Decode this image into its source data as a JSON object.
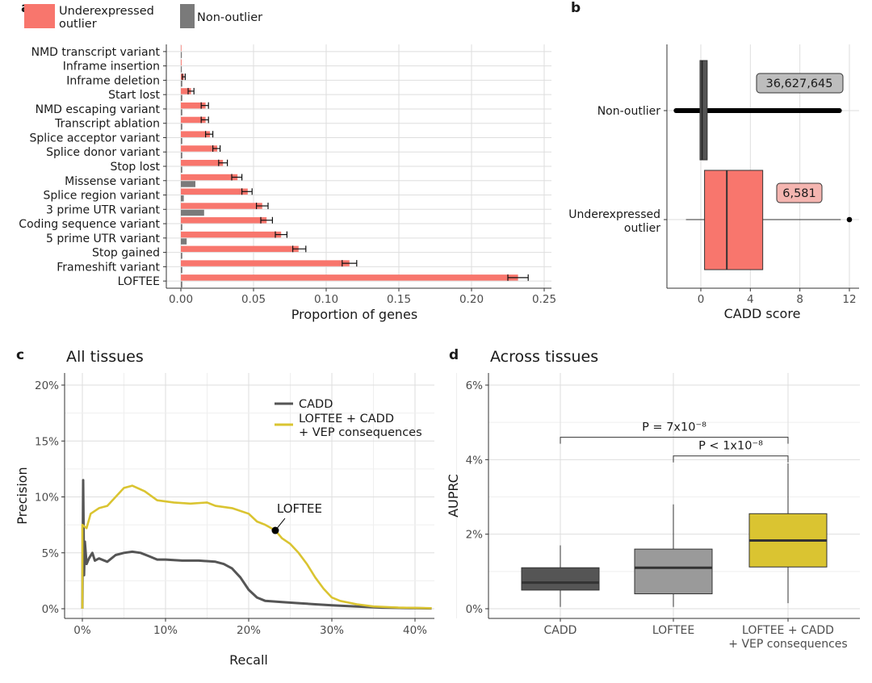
{
  "colors": {
    "outlier": "#F8766D",
    "non_outlier": "#7a7a7a",
    "cadd": "#555555",
    "combined": "#DAC431",
    "loftee_box": "#9a9a9a",
    "cadd_box": "#555555"
  },
  "chart_data": [
    {
      "panel": "a",
      "type": "bar",
      "legend": [
        "Underexpressed outlier",
        "Non-outlier"
      ],
      "legend_position": "top",
      "xlabel": "Proportion of genes",
      "xlim": [
        0,
        0.25
      ],
      "xticks": [
        "0.00",
        "0.05",
        "0.10",
        "0.15",
        "0.20",
        "0.25"
      ],
      "tick_values": [
        0,
        0.05,
        0.1,
        0.15,
        0.2,
        0.25
      ],
      "categories": [
        "LOFTEE",
        "Frameshift variant",
        "Stop gained",
        "5 prime UTR variant",
        "Coding sequence variant",
        "3 prime UTR variant",
        "Splice region variant",
        "Missense variant",
        "Stop lost",
        "Splice donor variant",
        "Splice acceptor variant",
        "Transcript ablation",
        "NMD escaping variant",
        "Start lost",
        "Inframe deletion",
        "Inframe insertion",
        "NMD transcript variant"
      ],
      "series": [
        {
          "name": "Underexpressed outlier",
          "values": [
            0.232,
            0.116,
            0.081,
            0.069,
            0.059,
            0.056,
            0.046,
            0.039,
            0.029,
            0.025,
            0.02,
            0.017,
            0.017,
            0.007,
            0.002,
            0.0005,
            0.0004
          ],
          "err_low": [
            0.225,
            0.111,
            0.077,
            0.065,
            0.055,
            0.052,
            0.042,
            0.035,
            0.026,
            0.022,
            0.017,
            0.014,
            0.014,
            0.005,
            0.001,
            0.0,
            0.0
          ],
          "err_high": [
            0.239,
            0.121,
            0.086,
            0.073,
            0.063,
            0.06,
            0.049,
            0.042,
            0.032,
            0.027,
            0.022,
            0.019,
            0.019,
            0.009,
            0.003,
            0.0,
            0.0
          ]
        },
        {
          "name": "Non-outlier",
          "values": [
            0.001,
            0.001,
            0.001,
            0.004,
            0.001,
            0.016,
            0.002,
            0.01,
            0.001,
            0.001,
            0.001,
            0.001,
            0.001,
            0.001,
            0.001,
            0.0005,
            0.0005
          ]
        }
      ],
      "grid": true
    },
    {
      "panel": "b",
      "type": "boxplot",
      "categories": [
        "Non-outlier",
        "Underexpressed\noutlier"
      ],
      "category_lines": [
        [
          "Non-outlier"
        ],
        [
          "Underexpressed",
          "outlier"
        ]
      ],
      "xlabel": "CADD score",
      "xlim": [
        -2.5,
        12.5
      ],
      "xticks": [
        "0",
        "4",
        "8",
        "12"
      ],
      "tick_values": [
        0,
        4,
        8,
        12
      ],
      "boxes": [
        {
          "name": "Non-outlier",
          "q1": 0.0,
          "median": 0.1,
          "q3": 0.45,
          "whisker_low": -1.5,
          "whisker_high": 1.5,
          "outliers_range": [
            -2.0,
            11.2
          ],
          "count_label": "36,627,645"
        },
        {
          "name": "Underexpressed outlier",
          "q1": 0.3,
          "median": 2.1,
          "q3": 5.0,
          "whisker_low": -1.2,
          "whisker_high": 11.3,
          "outliers": [
            12.0
          ],
          "count_label": "6,581"
        }
      ],
      "grid": true
    },
    {
      "panel": "c",
      "type": "line",
      "title": "All tissues",
      "xlabel": "Recall",
      "ylabel": "Precision",
      "xlim": [
        -0.01,
        0.42
      ],
      "ylim": [
        -0.005,
        0.205
      ],
      "xticks": [
        "0%",
        "10%",
        "20%",
        "30%",
        "40%"
      ],
      "xtick_values": [
        0,
        0.1,
        0.2,
        0.3,
        0.4
      ],
      "yticks": [
        "0%",
        "5%",
        "10%",
        "15%",
        "20%"
      ],
      "ytick_values": [
        0,
        0.05,
        0.1,
        0.15,
        0.2
      ],
      "legend_position": "top-right",
      "series": [
        {
          "name": "CADD",
          "points": [
            [
              0.0,
              0.0
            ],
            [
              0.001,
              0.115
            ],
            [
              0.002,
              0.03
            ],
            [
              0.003,
              0.06
            ],
            [
              0.005,
              0.04
            ],
            [
              0.008,
              0.045
            ],
            [
              0.012,
              0.05
            ],
            [
              0.015,
              0.043
            ],
            [
              0.02,
              0.045
            ],
            [
              0.03,
              0.042
            ],
            [
              0.04,
              0.048
            ],
            [
              0.05,
              0.05
            ],
            [
              0.06,
              0.051
            ],
            [
              0.07,
              0.05
            ],
            [
              0.08,
              0.047
            ],
            [
              0.09,
              0.044
            ],
            [
              0.1,
              0.044
            ],
            [
              0.12,
              0.043
            ],
            [
              0.14,
              0.043
            ],
            [
              0.16,
              0.042
            ],
            [
              0.17,
              0.04
            ],
            [
              0.18,
              0.036
            ],
            [
              0.19,
              0.028
            ],
            [
              0.2,
              0.017
            ],
            [
              0.21,
              0.01
            ],
            [
              0.22,
              0.007
            ],
            [
              0.24,
              0.006
            ],
            [
              0.26,
              0.005
            ],
            [
              0.28,
              0.004
            ],
            [
              0.3,
              0.003
            ],
            [
              0.33,
              0.002
            ],
            [
              0.36,
              0.001
            ],
            [
              0.4,
              0.0005
            ],
            [
              0.42,
              0.0003
            ]
          ]
        },
        {
          "name": "LOFTEE + CADD\n+ VEP consequences",
          "name_lines": [
            "LOFTEE + CADD",
            "+ VEP consequences"
          ],
          "points": [
            [
              0.0,
              0.0
            ],
            [
              0.0,
              0.075
            ],
            [
              0.005,
              0.072
            ],
            [
              0.01,
              0.085
            ],
            [
              0.02,
              0.09
            ],
            [
              0.03,
              0.092
            ],
            [
              0.04,
              0.1
            ],
            [
              0.05,
              0.108
            ],
            [
              0.06,
              0.11
            ],
            [
              0.075,
              0.105
            ],
            [
              0.09,
              0.097
            ],
            [
              0.11,
              0.095
            ],
            [
              0.13,
              0.094
            ],
            [
              0.15,
              0.095
            ],
            [
              0.16,
              0.092
            ],
            [
              0.18,
              0.09
            ],
            [
              0.2,
              0.085
            ],
            [
              0.21,
              0.078
            ],
            [
              0.22,
              0.075
            ],
            [
              0.232,
              0.07
            ],
            [
              0.24,
              0.063
            ],
            [
              0.25,
              0.058
            ],
            [
              0.26,
              0.05
            ],
            [
              0.27,
              0.04
            ],
            [
              0.28,
              0.028
            ],
            [
              0.29,
              0.018
            ],
            [
              0.3,
              0.01
            ],
            [
              0.31,
              0.007
            ],
            [
              0.33,
              0.004
            ],
            [
              0.35,
              0.002
            ],
            [
              0.38,
              0.001
            ],
            [
              0.42,
              0.0005
            ]
          ]
        }
      ],
      "annotation": {
        "label": "LOFTEE",
        "x": 0.232,
        "y": 0.07
      },
      "grid": true
    },
    {
      "panel": "d",
      "type": "boxplot",
      "title": "Across tissues",
      "ylabel": "AUPRC",
      "categories": [
        "CADD",
        "LOFTEE",
        "LOFTEE + CADD\n+ VEP consequences"
      ],
      "category_lines": [
        [
          "CADD"
        ],
        [
          "LOFTEE"
        ],
        [
          "LOFTEE + CADD",
          "+ VEP consequences"
        ]
      ],
      "ylim": [
        -0.003,
        0.062
      ],
      "yticks": [
        "0%",
        "2%",
        "4%",
        "6%"
      ],
      "ytick_values": [
        0,
        0.02,
        0.04,
        0.06
      ],
      "boxes": [
        {
          "name": "CADD",
          "whisker_low": 0.0005,
          "q1": 0.005,
          "median": 0.007,
          "q3": 0.011,
          "whisker_high": 0.017
        },
        {
          "name": "LOFTEE",
          "whisker_low": 0.0005,
          "q1": 0.004,
          "median": 0.011,
          "q3": 0.016,
          "whisker_high": 0.028
        },
        {
          "name": "LOFTEE + CADD + VEP consequences",
          "whisker_low": 0.0015,
          "q1": 0.0112,
          "median": 0.0183,
          "q3": 0.0255,
          "whisker_high": 0.039
        }
      ],
      "comparisons": [
        {
          "label": "P = 7x10⁻⁸",
          "from": 0,
          "to": 2,
          "y": 0.046
        },
        {
          "label": "P < 1x10⁻⁸",
          "from": 1,
          "to": 2,
          "y": 0.041
        }
      ],
      "grid": true
    }
  ],
  "panel_labels": {
    "a": "a",
    "b": "b",
    "c": "c",
    "d": "d"
  }
}
